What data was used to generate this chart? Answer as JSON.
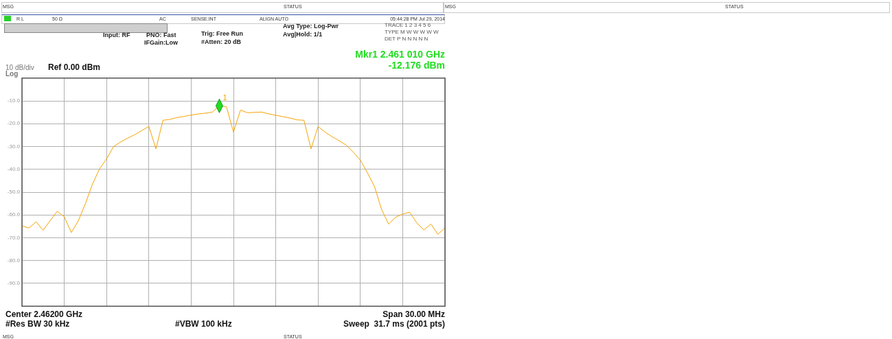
{
  "chart_data": {
    "type": "line",
    "categories": [
      null,
      null,
      null,
      null,
      null,
      null,
      null,
      null,
      null,
      null,
      null,
      null,
      null,
      null,
      null,
      null,
      null,
      null,
      null,
      null,
      null,
      null,
      null,
      null,
      null,
      null,
      null,
      null,
      null,
      null,
      null,
      null,
      null,
      null,
      null,
      null,
      null,
      null,
      null,
      null,
      null,
      null,
      null,
      null,
      null,
      null,
      null,
      null,
      null,
      null,
      null,
      null,
      null,
      null,
      null,
      null,
      null,
      null,
      null,
      null,
      null
    ],
    "ylim": [
      -100,
      0
    ],
    "yticks": [
      {
        "value": 0,
        "label": null
      },
      {
        "value": -10,
        "label": "-10.0"
      },
      {
        "value": -20,
        "label": "-20.0"
      },
      {
        "value": -30,
        "label": "-30.0"
      },
      {
        "value": -40,
        "label": "-40.0"
      },
      {
        "value": -50,
        "label": "-50.0"
      },
      {
        "value": -60,
        "label": "-60.0"
      },
      {
        "value": -70,
        "label": "-70.0"
      },
      {
        "value": -80,
        "label": "-80.0"
      },
      {
        "value": -90,
        "label": "-90.0"
      },
      {
        "value": -100,
        "label": null
      }
    ],
    "grid": true,
    "legend": false,
    "marker": "none",
    "line_style": "solid",
    "series": [
      {
        "color": "#f5a300",
        "values": [
          -64.8,
          -65.7,
          -63.0,
          -66.7,
          -62.5,
          -58.4,
          -60.8,
          -67.7,
          -62.5,
          -55.0,
          -46.5,
          -39.8,
          -35.4,
          -30.0,
          -28.0,
          -26.3,
          -24.8,
          -23.0,
          -21.2,
          -31.0,
          -18.5,
          -18.1,
          -17.3,
          -16.8,
          -16.2,
          -15.7,
          -15.4,
          -14.9,
          -12.176,
          -12.5,
          -23.7,
          -14.0,
          -15.2,
          -15.0,
          -14.9,
          -15.7,
          -16.3,
          -16.9,
          -17.5,
          -18.3,
          -18.5,
          -31.0,
          -21.2,
          -23.7,
          -25.7,
          -27.5,
          -29.4,
          -32.5,
          -36.0,
          -41.5,
          -47.5,
          -57.5,
          -64.0,
          -61.0,
          -59.6,
          -58.8,
          -63.5,
          -66.6,
          -64.0,
          -68.5,
          -65.6
        ]
      }
    ],
    "annotations": [
      "MSG",
      "STATUS",
      "MSG",
      "STATUS",
      "R L",
      "50 Ω",
      "AC",
      "SENSE:INT",
      "ALIGN AUTO",
      "05:44:28 PM Jul 29, 2014",
      "Input: RF",
      "PNO: Fast",
      "IFGain:Low",
      "Trig: Free Run",
      "#Atten: 20 dB",
      "Avg Type: Log-Pwr",
      "Avg|Hold: 1/1",
      "TRACE 1 2 3 4 5 6",
      "TYPE M W W W W W",
      "DET P N N N N N",
      "Mkr1 2.461 010 GHz",
      "-12.176 dBm",
      "10 dB/div",
      "Log",
      "Ref 0.00 dBm",
      "Center 2.46200 GHz",
      "Span 30.00 MHz",
      "#Res BW 30 kHz",
      "#VBW 100 kHz",
      "Sweep  31.7 ms (2001 pts)",
      "MSG",
      "STATUS",
      {
        "text": "1",
        "y": -12.176
      }
    ]
  }
}
